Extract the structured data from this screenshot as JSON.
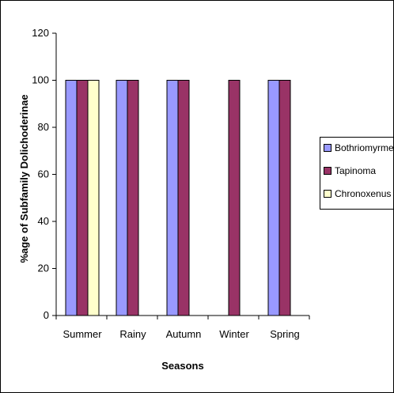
{
  "chart_data": {
    "type": "bar",
    "categories": [
      "Summer",
      "Rainy",
      "Autumn",
      "Winter",
      "Spring"
    ],
    "series": [
      {
        "name": "Bothriomyrmex",
        "color": "#9999ff",
        "values": [
          100,
          100,
          100,
          0,
          100
        ]
      },
      {
        "name": "Tapinoma",
        "color": "#993366",
        "values": [
          100,
          100,
          100,
          100,
          100
        ]
      },
      {
        "name": "Chronoxenus",
        "color": "#ffffcc",
        "values": [
          100,
          0,
          0,
          0,
          0
        ]
      }
    ],
    "xlabel": "Seasons",
    "ylabel": "%age of Subfamily Dolichoderinae",
    "ylim": [
      0,
      120
    ],
    "yticks": [
      0,
      20,
      40,
      60,
      80,
      100,
      120
    ],
    "legend_position": "right",
    "grid": false
  }
}
